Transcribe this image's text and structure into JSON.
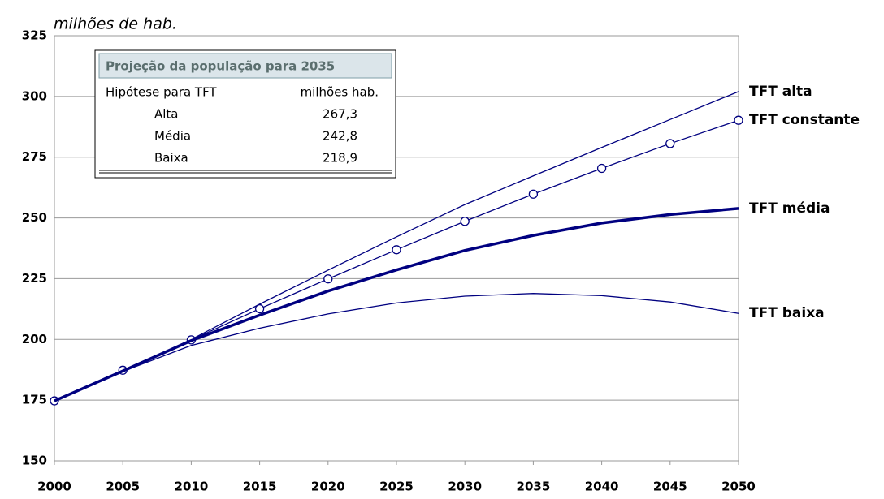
{
  "chart_data": {
    "type": "line",
    "y_label": "milhões de hab.",
    "x": [
      2000,
      2005,
      2010,
      2015,
      2020,
      2025,
      2030,
      2035,
      2040,
      2045,
      2050
    ],
    "xlim": [
      2000,
      2050
    ],
    "xticks": [
      2000,
      2005,
      2010,
      2015,
      2020,
      2025,
      2030,
      2035,
      2040,
      2045,
      2050
    ],
    "ylim": [
      150,
      325
    ],
    "yticks": [
      150,
      175,
      200,
      225,
      250,
      275,
      300,
      325
    ],
    "grid": true,
    "series": [
      {
        "name": "TFT alta",
        "color": "#000080",
        "line_width": 1.3,
        "markers": false,
        "values": [
          174.7,
          187.0,
          200.0,
          214.5,
          228.5,
          242.2,
          255.5,
          267.3,
          279.0,
          290.5,
          302.0
        ]
      },
      {
        "name": "TFT constante",
        "color": "#000080",
        "line_width": 1.3,
        "markers": true,
        "values": [
          174.7,
          187.3,
          199.8,
          212.6,
          224.9,
          236.9,
          248.6,
          259.8,
          270.4,
          280.6,
          290.2
        ]
      },
      {
        "name": "TFT média",
        "color": "#000080",
        "line_width": 3.5,
        "markers": false,
        "values": [
          174.7,
          187.0,
          199.5,
          210.0,
          219.9,
          228.6,
          236.6,
          242.8,
          247.9,
          251.4,
          253.9
        ]
      },
      {
        "name": "TFT baixa",
        "color": "#000080",
        "line_width": 1.3,
        "markers": false,
        "values": [
          174.7,
          186.8,
          197.5,
          204.6,
          210.5,
          215.0,
          217.8,
          218.9,
          218.0,
          215.4,
          210.7
        ]
      }
    ]
  },
  "inset_table": {
    "title": "Projeção da população para 2035",
    "headers": [
      "Hipótese para TFT",
      "milhões hab."
    ],
    "rows": [
      [
        "Alta",
        "267,3"
      ],
      [
        "Média",
        "242,8"
      ],
      [
        "Baixa",
        "218,9"
      ]
    ]
  }
}
